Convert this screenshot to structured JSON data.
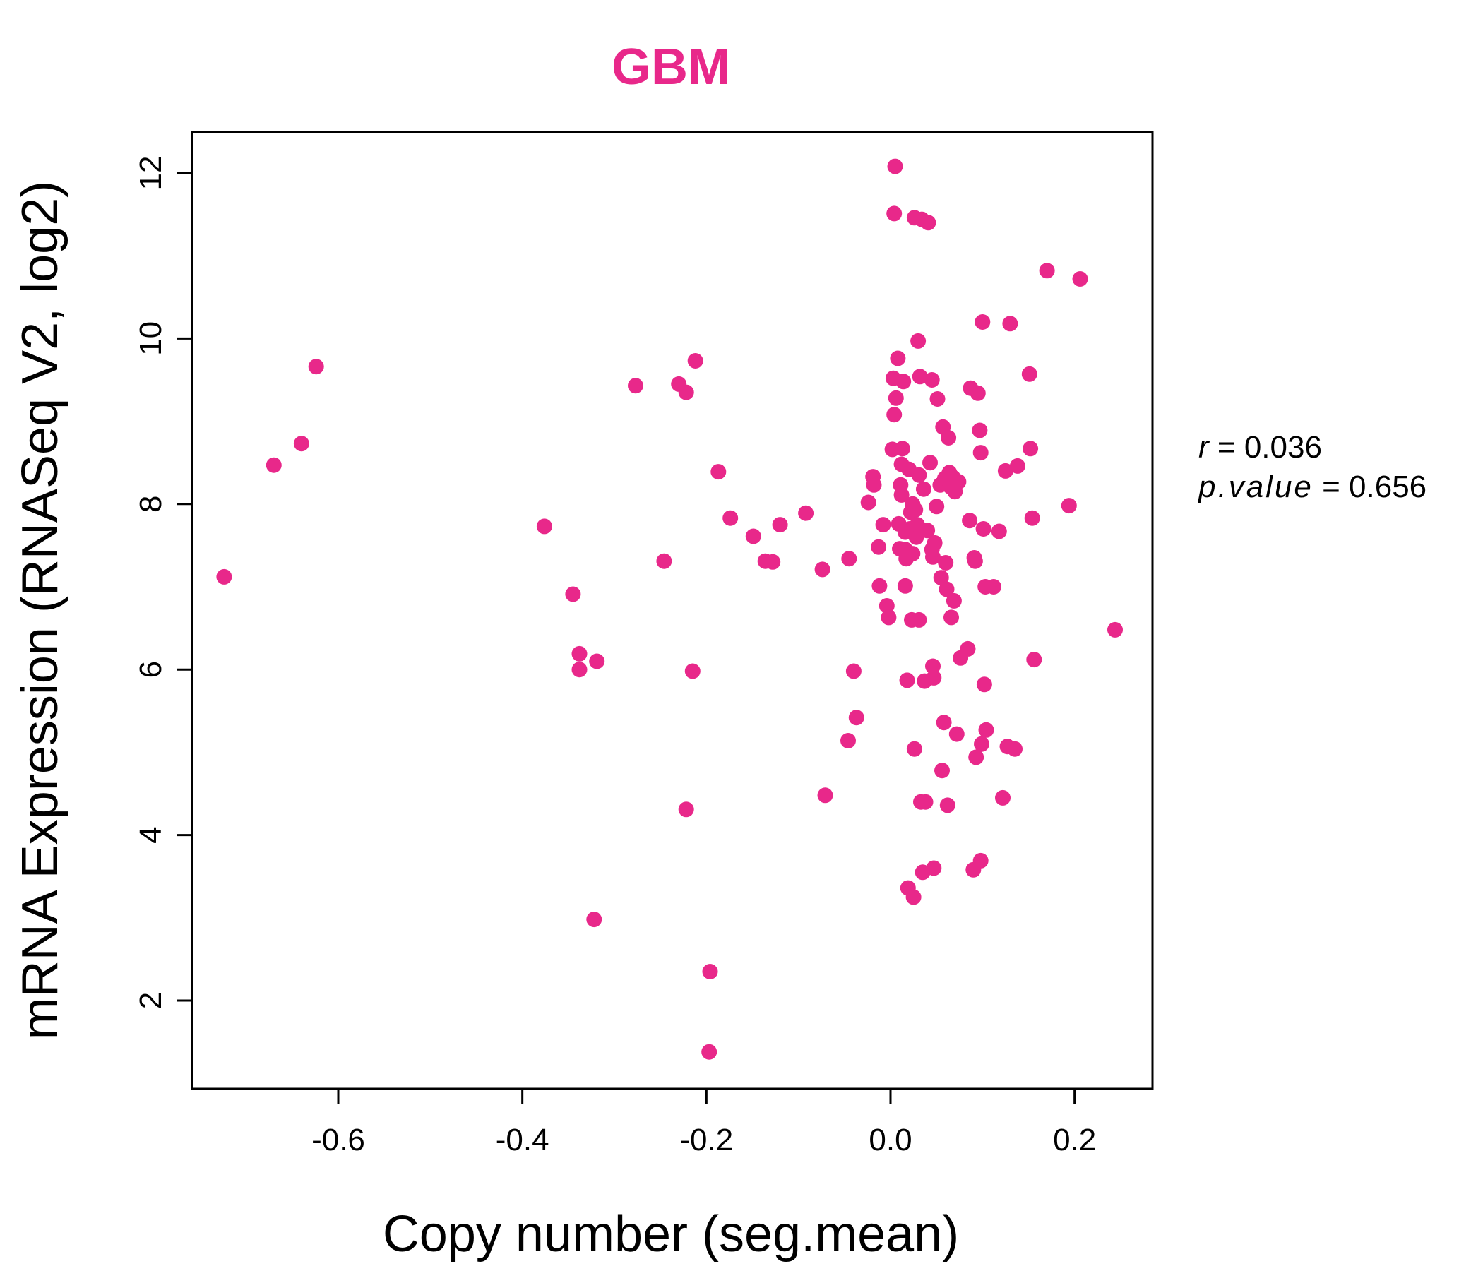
{
  "chart_data": {
    "type": "scatter",
    "title": "GBM",
    "xlabel": "Copy number (seg.mean)",
    "ylabel": "mRNA Expression (RNASeq V2, log2)",
    "xlim": [
      -0.75,
      0.28
    ],
    "ylim": [
      0.9,
      12.5
    ],
    "x_ticks": [
      -0.6,
      -0.4,
      -0.2,
      0.0,
      0.2
    ],
    "x_tick_labels": [
      "-0.6",
      "-0.4",
      "-0.2",
      "0.0",
      "0.2"
    ],
    "y_ticks": [
      2,
      4,
      6,
      8,
      10,
      12
    ],
    "y_tick_labels": [
      "2",
      "4",
      "6",
      "8",
      "10",
      "12"
    ],
    "grid": false,
    "color": "#e8288a",
    "annotation": {
      "r_label": "r",
      "r_value": "0.036",
      "p_label": "p.value",
      "p_value": "0.656"
    },
    "points": [
      {
        "x": -0.724,
        "y": 7.12
      },
      {
        "x": -0.67,
        "y": 8.47
      },
      {
        "x": -0.64,
        "y": 8.73
      },
      {
        "x": -0.624,
        "y": 9.66
      },
      {
        "x": -0.376,
        "y": 7.73
      },
      {
        "x": -0.345,
        "y": 6.91
      },
      {
        "x": -0.338,
        "y": 6.19
      },
      {
        "x": -0.338,
        "y": 6.0
      },
      {
        "x": -0.319,
        "y": 6.1
      },
      {
        "x": -0.322,
        "y": 2.98
      },
      {
        "x": -0.277,
        "y": 9.43
      },
      {
        "x": -0.246,
        "y": 7.31
      },
      {
        "x": -0.23,
        "y": 9.45
      },
      {
        "x": -0.222,
        "y": 9.35
      },
      {
        "x": -0.212,
        "y": 9.73
      },
      {
        "x": -0.215,
        "y": 5.98
      },
      {
        "x": -0.222,
        "y": 4.31
      },
      {
        "x": -0.187,
        "y": 8.39
      },
      {
        "x": -0.174,
        "y": 7.83
      },
      {
        "x": -0.196,
        "y": 2.35
      },
      {
        "x": -0.197,
        "y": 1.38
      },
      {
        "x": -0.149,
        "y": 7.61
      },
      {
        "x": -0.136,
        "y": 7.31
      },
      {
        "x": -0.128,
        "y": 7.3
      },
      {
        "x": -0.12,
        "y": 7.75
      },
      {
        "x": -0.092,
        "y": 7.89
      },
      {
        "x": -0.074,
        "y": 7.21
      },
      {
        "x": -0.071,
        "y": 4.48
      },
      {
        "x": -0.045,
        "y": 7.34
      },
      {
        "x": -0.046,
        "y": 5.14
      },
      {
        "x": -0.04,
        "y": 5.98
      },
      {
        "x": -0.037,
        "y": 5.42
      },
      {
        "x": -0.024,
        "y": 8.02
      },
      {
        "x": -0.019,
        "y": 8.33
      },
      {
        "x": -0.018,
        "y": 8.23
      },
      {
        "x": -0.013,
        "y": 7.48
      },
      {
        "x": -0.012,
        "y": 7.01
      },
      {
        "x": -0.008,
        "y": 7.75
      },
      {
        "x": -0.004,
        "y": 6.77
      },
      {
        "x": -0.002,
        "y": 6.63
      },
      {
        "x": 0.002,
        "y": 8.66
      },
      {
        "x": 0.003,
        "y": 9.52
      },
      {
        "x": 0.004,
        "y": 9.08
      },
      {
        "x": 0.006,
        "y": 9.28
      },
      {
        "x": 0.005,
        "y": 12.08
      },
      {
        "x": 0.004,
        "y": 11.51
      },
      {
        "x": 0.008,
        "y": 9.76
      },
      {
        "x": 0.009,
        "y": 7.76
      },
      {
        "x": 0.01,
        "y": 7.46
      },
      {
        "x": 0.012,
        "y": 8.48
      },
      {
        "x": 0.011,
        "y": 8.23
      },
      {
        "x": 0.012,
        "y": 8.11
      },
      {
        "x": 0.013,
        "y": 8.67
      },
      {
        "x": 0.014,
        "y": 9.48
      },
      {
        "x": 0.016,
        "y": 7.66
      },
      {
        "x": 0.016,
        "y": 7.45
      },
      {
        "x": 0.016,
        "y": 7.01
      },
      {
        "x": 0.017,
        "y": 7.34
      },
      {
        "x": 0.018,
        "y": 5.87
      },
      {
        "x": 0.019,
        "y": 3.36
      },
      {
        "x": 0.02,
        "y": 8.42
      },
      {
        "x": 0.021,
        "y": 7.7
      },
      {
        "x": 0.022,
        "y": 7.9
      },
      {
        "x": 0.023,
        "y": 6.6
      },
      {
        "x": 0.024,
        "y": 8.0
      },
      {
        "x": 0.024,
        "y": 7.4
      },
      {
        "x": 0.025,
        "y": 3.25
      },
      {
        "x": 0.026,
        "y": 5.04
      },
      {
        "x": 0.026,
        "y": 11.46
      },
      {
        "x": 0.027,
        "y": 7.93
      },
      {
        "x": 0.028,
        "y": 7.6
      },
      {
        "x": 0.029,
        "y": 7.75
      },
      {
        "x": 0.03,
        "y": 9.97
      },
      {
        "x": 0.031,
        "y": 8.35
      },
      {
        "x": 0.031,
        "y": 6.6
      },
      {
        "x": 0.032,
        "y": 9.54
      },
      {
        "x": 0.033,
        "y": 4.4
      },
      {
        "x": 0.034,
        "y": 11.44
      },
      {
        "x": 0.035,
        "y": 3.55
      },
      {
        "x": 0.036,
        "y": 8.18
      },
      {
        "x": 0.037,
        "y": 5.86
      },
      {
        "x": 0.038,
        "y": 4.4
      },
      {
        "x": 0.04,
        "y": 7.68
      },
      {
        "x": 0.041,
        "y": 11.4
      },
      {
        "x": 0.043,
        "y": 8.5
      },
      {
        "x": 0.045,
        "y": 9.5
      },
      {
        "x": 0.045,
        "y": 7.45
      },
      {
        "x": 0.046,
        "y": 7.36
      },
      {
        "x": 0.046,
        "y": 6.04
      },
      {
        "x": 0.047,
        "y": 5.9
      },
      {
        "x": 0.047,
        "y": 3.6
      },
      {
        "x": 0.048,
        "y": 7.53
      },
      {
        "x": 0.05,
        "y": 7.97
      },
      {
        "x": 0.051,
        "y": 9.27
      },
      {
        "x": 0.054,
        "y": 8.23
      },
      {
        "x": 0.055,
        "y": 7.11
      },
      {
        "x": 0.056,
        "y": 4.78
      },
      {
        "x": 0.057,
        "y": 8.93
      },
      {
        "x": 0.058,
        "y": 5.36
      },
      {
        "x": 0.059,
        "y": 8.31
      },
      {
        "x": 0.06,
        "y": 7.29
      },
      {
        "x": 0.061,
        "y": 6.97
      },
      {
        "x": 0.062,
        "y": 4.36
      },
      {
        "x": 0.063,
        "y": 8.8
      },
      {
        "x": 0.064,
        "y": 8.38
      },
      {
        "x": 0.065,
        "y": 8.21
      },
      {
        "x": 0.066,
        "y": 6.63
      },
      {
        "x": 0.068,
        "y": 8.32
      },
      {
        "x": 0.069,
        "y": 6.83
      },
      {
        "x": 0.07,
        "y": 8.15
      },
      {
        "x": 0.072,
        "y": 5.22
      },
      {
        "x": 0.074,
        "y": 8.27
      },
      {
        "x": 0.076,
        "y": 6.14
      },
      {
        "x": 0.084,
        "y": 6.25
      },
      {
        "x": 0.086,
        "y": 7.8
      },
      {
        "x": 0.087,
        "y": 9.4
      },
      {
        "x": 0.09,
        "y": 3.58
      },
      {
        "x": 0.091,
        "y": 7.35
      },
      {
        "x": 0.092,
        "y": 7.31
      },
      {
        "x": 0.093,
        "y": 4.94
      },
      {
        "x": 0.095,
        "y": 9.34
      },
      {
        "x": 0.097,
        "y": 8.89
      },
      {
        "x": 0.098,
        "y": 3.69
      },
      {
        "x": 0.098,
        "y": 8.62
      },
      {
        "x": 0.099,
        "y": 5.1
      },
      {
        "x": 0.1,
        "y": 10.2
      },
      {
        "x": 0.101,
        "y": 7.7
      },
      {
        "x": 0.102,
        "y": 5.82
      },
      {
        "x": 0.103,
        "y": 7.0
      },
      {
        "x": 0.104,
        "y": 5.27
      },
      {
        "x": 0.112,
        "y": 7.0
      },
      {
        "x": 0.118,
        "y": 7.67
      },
      {
        "x": 0.122,
        "y": 4.45
      },
      {
        "x": 0.125,
        "y": 8.4
      },
      {
        "x": 0.127,
        "y": 5.07
      },
      {
        "x": 0.13,
        "y": 10.18
      },
      {
        "x": 0.135,
        "y": 5.04
      },
      {
        "x": 0.138,
        "y": 8.46
      },
      {
        "x": 0.151,
        "y": 9.57
      },
      {
        "x": 0.152,
        "y": 8.67
      },
      {
        "x": 0.154,
        "y": 7.83
      },
      {
        "x": 0.156,
        "y": 6.12
      },
      {
        "x": 0.17,
        "y": 10.82
      },
      {
        "x": 0.194,
        "y": 7.98
      },
      {
        "x": 0.206,
        "y": 10.72
      },
      {
        "x": 0.244,
        "y": 6.48
      }
    ]
  }
}
